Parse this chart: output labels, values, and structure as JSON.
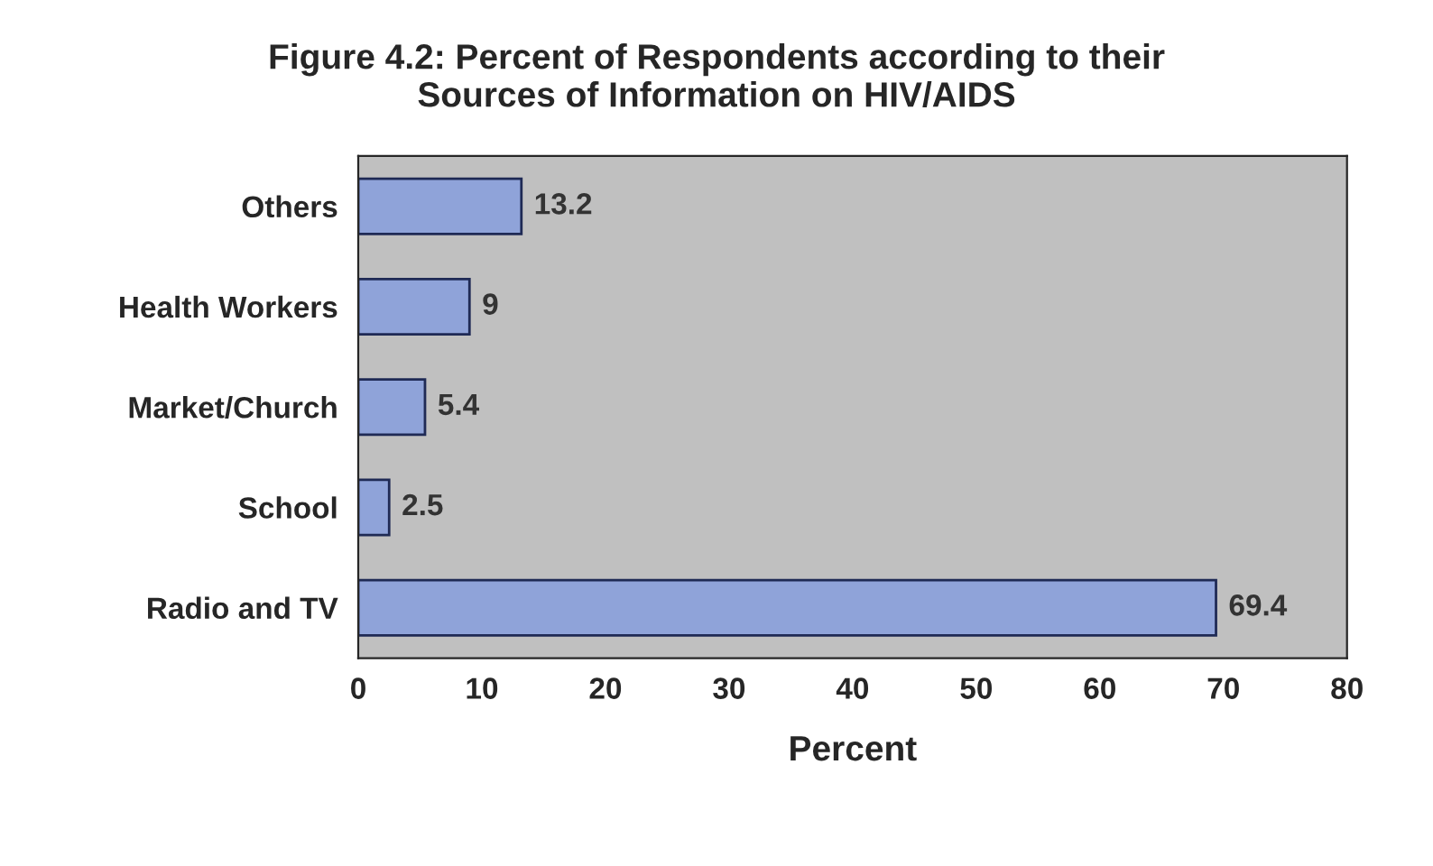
{
  "chart_data": {
    "type": "bar",
    "orientation": "horizontal",
    "title": "Figure 4.2: Percent of Respondents according to their\nSources of Information on HIV/AIDS",
    "xlabel": "Percent",
    "categories": [
      "Others",
      "Health Workers",
      "Market/Church",
      "School",
      "Radio and TV"
    ],
    "values": [
      13.2,
      9,
      5.4,
      2.5,
      69.4
    ],
    "color": "#8fa3d9",
    "xlim": [
      0,
      80
    ],
    "xticks": [
      0,
      10,
      20,
      30,
      40,
      50,
      60,
      70,
      80
    ],
    "data_labels": true,
    "grid": false,
    "legend": false
  }
}
